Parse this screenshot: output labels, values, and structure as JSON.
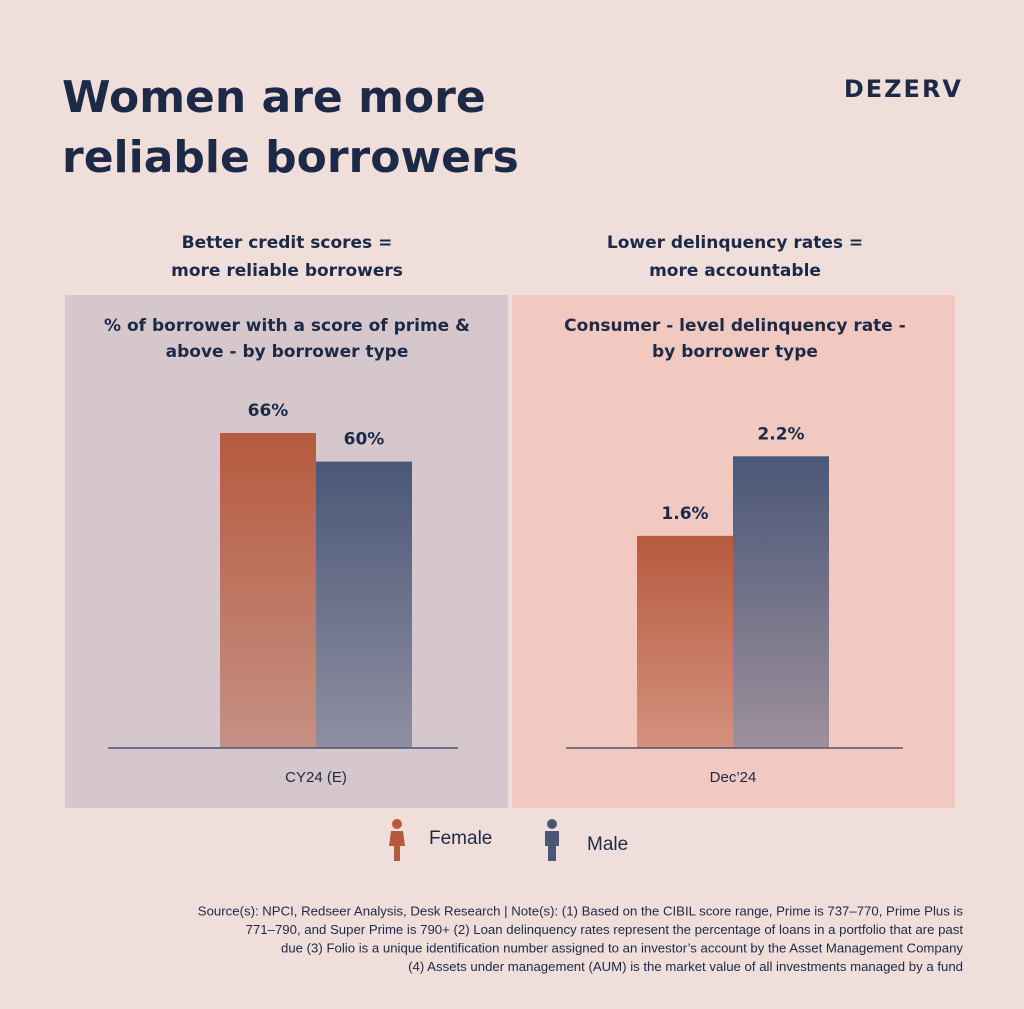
{
  "header": {
    "title": [
      "Women are more",
      "reliable borrowers"
    ],
    "brand": "DEZERV"
  },
  "chart_data": [
    {
      "type": "bar",
      "heading": [
        "Better credit scores =",
        "more reliable borrowers"
      ],
      "title": [
        "% of borrower with a score of prime &",
        "above - by borrower type"
      ],
      "categories": [
        "CY24 (E)"
      ],
      "ylim": [
        0,
        75
      ],
      "series": [
        {
          "name": "Female",
          "color": "#b65a3e",
          "values": [
            66
          ],
          "value_labels": [
            "66%"
          ]
        },
        {
          "name": "Male",
          "color": "#4a5777",
          "values": [
            60
          ],
          "value_labels": [
            "60%"
          ]
        }
      ]
    },
    {
      "type": "bar",
      "heading": [
        "Lower delinquency rates =",
        "more accountable"
      ],
      "title": [
        "Consumer - level delinquency rate -",
        "by borrower type"
      ],
      "categories": [
        "Dec’24"
      ],
      "ylim": [
        0,
        2.7
      ],
      "series": [
        {
          "color": "#b65a3e",
          "values": [
            1.6
          ],
          "value_labels": [
            "1.6%"
          ]
        },
        {
          "color": "#4a5777",
          "values": [
            2.2
          ],
          "value_labels": [
            "2.2%"
          ]
        }
      ]
    }
  ],
  "footer": {
    "lines": [
      "Source(s): NPCI, Redseer Analysis, Desk Research |  Note(s): (1) Based on the CIBIL score range, Prime is 737–770, Prime Plus is",
      "771–790, and Super Prime is 790+  (2) Loan delinquency rates represent the percentage of loans in a portfolio that are past",
      "due (3) Folio is a unique identification number assigned to an investor’s account by the Asset Management Company",
      "(4) Assets under management (AUM) is the market value of all investments managed by a fund"
    ]
  }
}
